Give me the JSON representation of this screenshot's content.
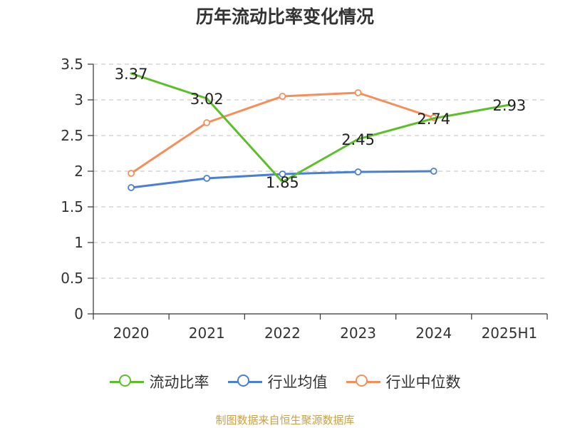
{
  "chart_data": {
    "type": "line",
    "title": "历年流动比率变化情况",
    "categories": [
      "2020",
      "2021",
      "2022",
      "2023",
      "2024",
      "2025H1"
    ],
    "ylim": [
      0,
      3.5
    ],
    "yticks": [
      "0",
      "0.5",
      "1",
      "1.5",
      "2",
      "2.5",
      "3",
      "3.5"
    ],
    "grid": true,
    "legend_position": "bottom",
    "series": [
      {
        "name": "流动比率",
        "color": "#5cbf29",
        "values": [
          3.37,
          3.02,
          1.85,
          2.45,
          2.74,
          2.93
        ],
        "labels": [
          "3.37",
          "3.02",
          "1.85",
          "2.45",
          "2.74",
          "2.93"
        ]
      },
      {
        "name": "行业均值",
        "color": "#4a7fd6",
        "values": [
          1.77,
          1.9,
          1.96,
          1.99,
          2.0,
          null
        ]
      },
      {
        "name": "行业中位数",
        "color": "#f78e5a",
        "values": [
          1.97,
          2.68,
          3.05,
          3.1,
          2.75,
          null
        ]
      }
    ]
  },
  "legend": [
    "流动比率",
    "行业均值",
    "行业中位数"
  ],
  "source": "制图数据来自恒生聚源数据库"
}
